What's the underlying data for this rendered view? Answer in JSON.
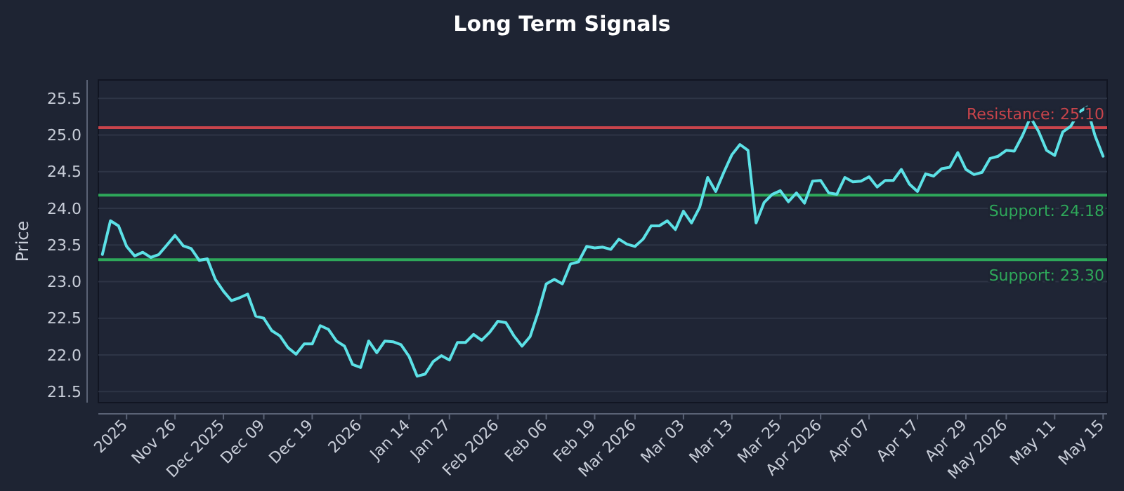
{
  "chart_data": {
    "type": "line",
    "title": "Long Term Signals",
    "ylabel": "Price",
    "categories": [
      null,
      null,
      null,
      "2025",
      null,
      null,
      null,
      null,
      null,
      "Nov 26",
      null,
      null,
      null,
      null,
      null,
      "Dec 2025",
      null,
      null,
      null,
      null,
      "Dec 09",
      null,
      null,
      null,
      null,
      null,
      "Dec 19",
      null,
      null,
      null,
      null,
      null,
      "2026",
      null,
      null,
      null,
      null,
      null,
      "Jan 14",
      null,
      null,
      null,
      null,
      "Jan 27",
      null,
      null,
      null,
      null,
      null,
      "Feb 2026",
      null,
      null,
      null,
      null,
      null,
      "Feb 06",
      null,
      null,
      null,
      null,
      null,
      "Feb 19",
      null,
      null,
      null,
      null,
      "Mar 2026",
      null,
      null,
      null,
      null,
      null,
      "Mar 03",
      null,
      null,
      null,
      null,
      null,
      "Mar 13",
      null,
      null,
      null,
      null,
      null,
      "Mar 25",
      null,
      null,
      null,
      null,
      "Apr 2026",
      null,
      null,
      null,
      null,
      null,
      "Apr 07",
      null,
      null,
      null,
      null,
      null,
      "Apr 17",
      null,
      null,
      null,
      null,
      null,
      "Apr 29",
      null,
      null,
      null,
      null,
      "May 2026",
      null,
      null,
      null,
      null,
      null,
      "May 11",
      null,
      null,
      null,
      null,
      null,
      "May 15"
    ],
    "series": [
      {
        "color": "#5ce1e6",
        "values": [
          23.37,
          23.83,
          23.76,
          23.48,
          23.35,
          23.4,
          23.33,
          23.37,
          23.5,
          23.63,
          23.49,
          23.45,
          23.29,
          23.31,
          23.03,
          22.87,
          22.74,
          22.78,
          22.83,
          22.53,
          22.5,
          22.33,
          22.26,
          22.1,
          22.01,
          22.15,
          22.15,
          22.4,
          22.35,
          22.19,
          22.12,
          21.87,
          21.83,
          22.19,
          22.03,
          22.19,
          22.18,
          22.14,
          21.98,
          21.71,
          21.74,
          21.91,
          21.99,
          21.93,
          22.17,
          22.17,
          22.28,
          22.2,
          22.31,
          22.46,
          22.44,
          22.26,
          22.12,
          22.25,
          22.58,
          22.97,
          23.03,
          22.97,
          23.24,
          23.27,
          23.48,
          23.46,
          23.47,
          23.44,
          23.58,
          23.51,
          23.48,
          23.58,
          23.76,
          23.76,
          23.83,
          23.71,
          23.96,
          23.8,
          24.01,
          24.42,
          24.23,
          24.49,
          24.73,
          24.87,
          24.79,
          23.8,
          24.08,
          24.19,
          24.24,
          24.09,
          24.21,
          24.07,
          24.37,
          24.38,
          24.21,
          24.19,
          24.42,
          24.36,
          24.37,
          24.43,
          24.29,
          24.38,
          24.38,
          24.53,
          24.33,
          24.23,
          24.47,
          24.44,
          24.54,
          24.56,
          24.76,
          24.53,
          24.46,
          24.49,
          24.68,
          24.71,
          24.79,
          24.78,
          24.99,
          25.24,
          25.05,
          24.79,
          24.72,
          25.04,
          25.12,
          25.31,
          25.38,
          24.99,
          24.71
        ]
      }
    ],
    "ylim": [
      21.35,
      25.75
    ],
    "yticks": [
      21.5,
      {
        "value": 22,
        "label": "22.0"
      },
      22.5,
      {
        "value": 23,
        "label": "23.0"
      },
      23.5,
      {
        "value": 24,
        "label": "24.0"
      },
      24.5,
      {
        "value": 25,
        "label": "25.0"
      },
      25.5
    ],
    "grid": "y",
    "marker": "none",
    "line_style": "solid",
    "ref_lines": [
      {
        "axis": "y",
        "value": 25.1,
        "label": "Resistance: 25.10",
        "color": "#c9444b"
      },
      {
        "axis": "y",
        "value": 24.18,
        "label": "Support: 24.18",
        "color": "#2ea85a"
      },
      {
        "axis": "y",
        "value": 23.3,
        "label": "Support: 23.30",
        "color": "#2ea85a"
      }
    ]
  }
}
